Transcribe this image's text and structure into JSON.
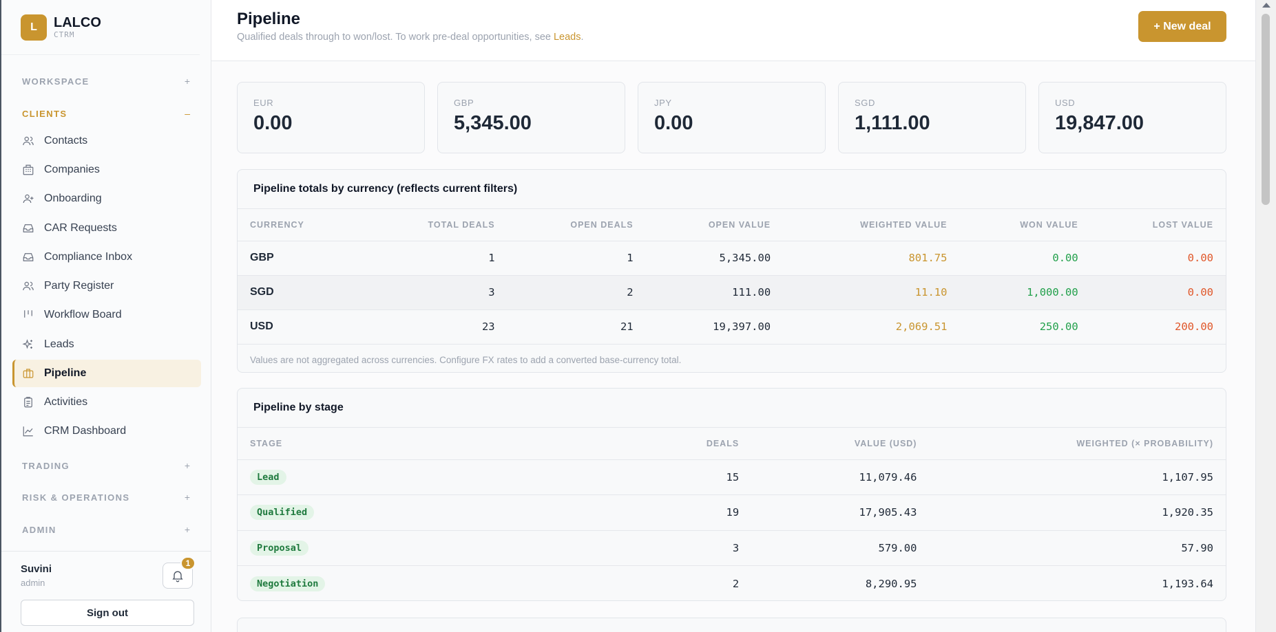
{
  "brand": {
    "initial": "L",
    "name": "LALCO",
    "sub": "CTRM"
  },
  "sidebar": {
    "sections": [
      {
        "label": "WORKSPACE",
        "toggle": "+"
      },
      {
        "label": "CLIENTS",
        "toggle": "–"
      },
      {
        "label": "TRADING",
        "toggle": "+"
      },
      {
        "label": "RISK & OPERATIONS",
        "toggle": "+"
      },
      {
        "label": "ADMIN",
        "toggle": "+"
      }
    ],
    "items": [
      {
        "label": "Contacts",
        "icon": "users-icon"
      },
      {
        "label": "Companies",
        "icon": "building-icon"
      },
      {
        "label": "Onboarding",
        "icon": "user-plus-icon"
      },
      {
        "label": "CAR Requests",
        "icon": "inbox-icon"
      },
      {
        "label": "Compliance Inbox",
        "icon": "inbox-icon"
      },
      {
        "label": "Party Register",
        "icon": "users-icon"
      },
      {
        "label": "Workflow Board",
        "icon": "columns-icon"
      },
      {
        "label": "Leads",
        "icon": "sparkles-icon"
      },
      {
        "label": "Pipeline",
        "icon": "briefcase-icon"
      },
      {
        "label": "Activities",
        "icon": "clipboard-icon"
      },
      {
        "label": "CRM Dashboard",
        "icon": "chart-line-icon"
      }
    ],
    "user": {
      "name": "Suvini",
      "role": "admin"
    },
    "notifications": "1",
    "signout_label": "Sign out"
  },
  "header": {
    "title": "Pipeline",
    "subtitle": "Qualified deals through to won/lost. To work pre-deal opportunities, see ",
    "subtitle_link": "Leads",
    "subtitle_end": ".",
    "new_deal_label": "+ New deal"
  },
  "cards": [
    {
      "label": "EUR",
      "value": "0.00"
    },
    {
      "label": "GBP",
      "value": "5,345.00"
    },
    {
      "label": "JPY",
      "value": "0.00"
    },
    {
      "label": "SGD",
      "value": "1,111.00"
    },
    {
      "label": "USD",
      "value": "19,847.00"
    }
  ],
  "totals": {
    "title": "Pipeline totals by currency (reflects current filters)",
    "columns": [
      "CURRENCY",
      "TOTAL DEALS",
      "OPEN DEALS",
      "OPEN VALUE",
      "WEIGHTED VALUE",
      "WON VALUE",
      "LOST VALUE"
    ],
    "rows": [
      {
        "currency": "GBP",
        "total": "1",
        "open": "1",
        "open_value": "5,345.00",
        "weighted": "801.75",
        "won": "0.00",
        "lost": "0.00"
      },
      {
        "currency": "SGD",
        "total": "3",
        "open": "2",
        "open_value": "111.00",
        "weighted": "11.10",
        "won": "1,000.00",
        "lost": "0.00"
      },
      {
        "currency": "USD",
        "total": "23",
        "open": "21",
        "open_value": "19,397.00",
        "weighted": "2,069.51",
        "won": "250.00",
        "lost": "200.00"
      }
    ],
    "note": "Values are not aggregated across currencies. Configure FX rates to add a converted base-currency total."
  },
  "stages": {
    "title": "Pipeline by stage",
    "columns": [
      "STAGE",
      "DEALS",
      "VALUE (USD)",
      "WEIGHTED (× PROBABILITY)"
    ],
    "rows": [
      {
        "stage": "Lead",
        "deals": "15",
        "value": "11,079.46",
        "weighted": "1,107.95"
      },
      {
        "stage": "Qualified",
        "deals": "19",
        "value": "17,905.43",
        "weighted": "1,920.35"
      },
      {
        "stage": "Proposal",
        "deals": "3",
        "value": "579.00",
        "weighted": "57.90"
      },
      {
        "stage": "Negotiation",
        "deals": "2",
        "value": "8,290.95",
        "weighted": "1,193.64"
      }
    ]
  },
  "colors": {
    "accent": "#c9952f",
    "won": "#22a04b",
    "lost": "#e0572a"
  }
}
